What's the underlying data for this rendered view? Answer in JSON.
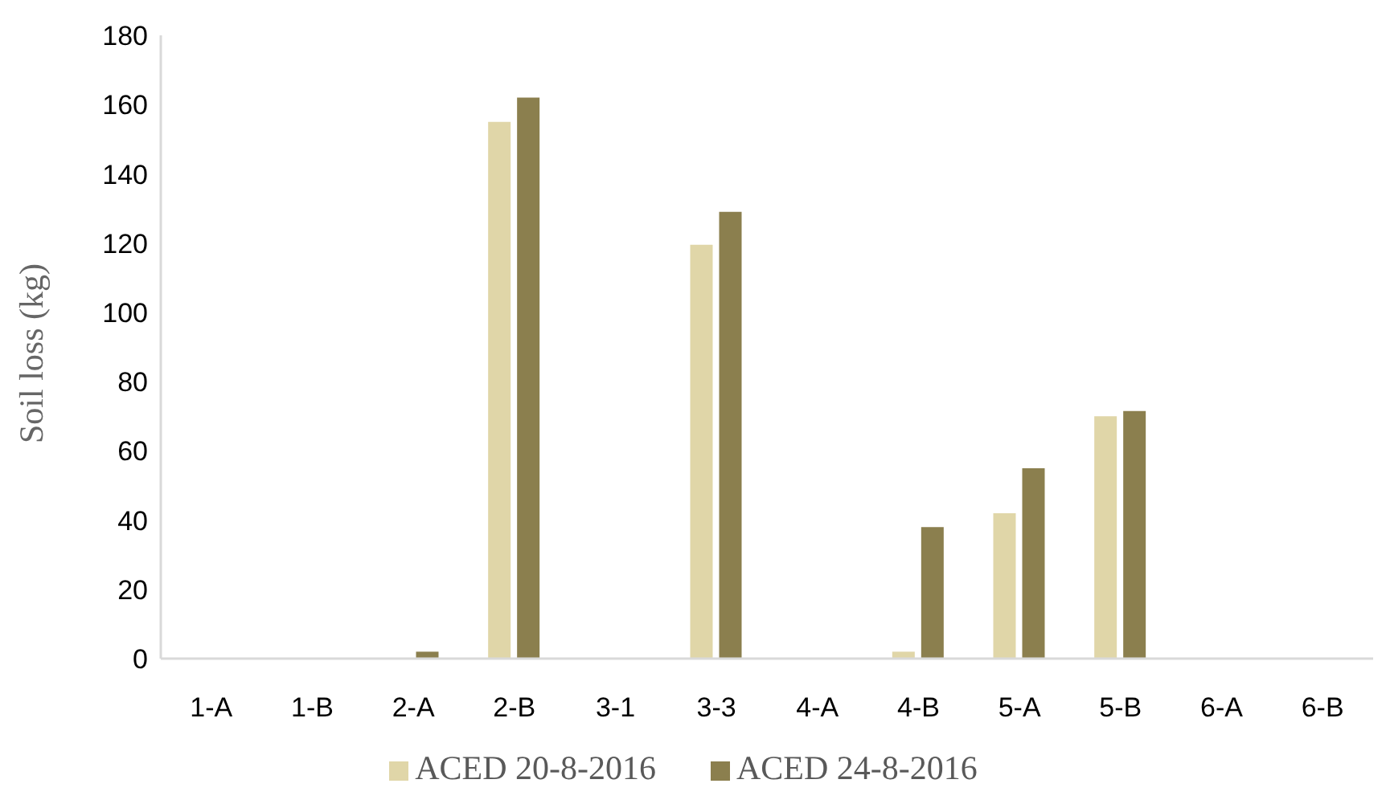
{
  "chart_data": {
    "type": "bar",
    "ylabel": "Soil loss (kg)",
    "categories": [
      "1-A",
      "1-B",
      "2-A",
      "2-B",
      "3-1",
      "3-3",
      "4-A",
      "4-B",
      "5-A",
      "5-B",
      "6-A",
      "6-B"
    ],
    "series": [
      {
        "name": "ACED 20-8-2016",
        "color": "#e0d6a8",
        "values": [
          0,
          0,
          0,
          155,
          0,
          119.5,
          0,
          2,
          42,
          70,
          0,
          0
        ]
      },
      {
        "name": "ACED 24-8-2016",
        "color": "#8b7f4e",
        "values": [
          0,
          0,
          2,
          162,
          0,
          129,
          0,
          38,
          55,
          71.5,
          0,
          0
        ]
      }
    ],
    "ylim": [
      0,
      180
    ],
    "yticks": [
      0,
      20,
      40,
      60,
      80,
      100,
      120,
      140,
      160,
      180
    ],
    "grid": false,
    "legend": "bottom"
  }
}
